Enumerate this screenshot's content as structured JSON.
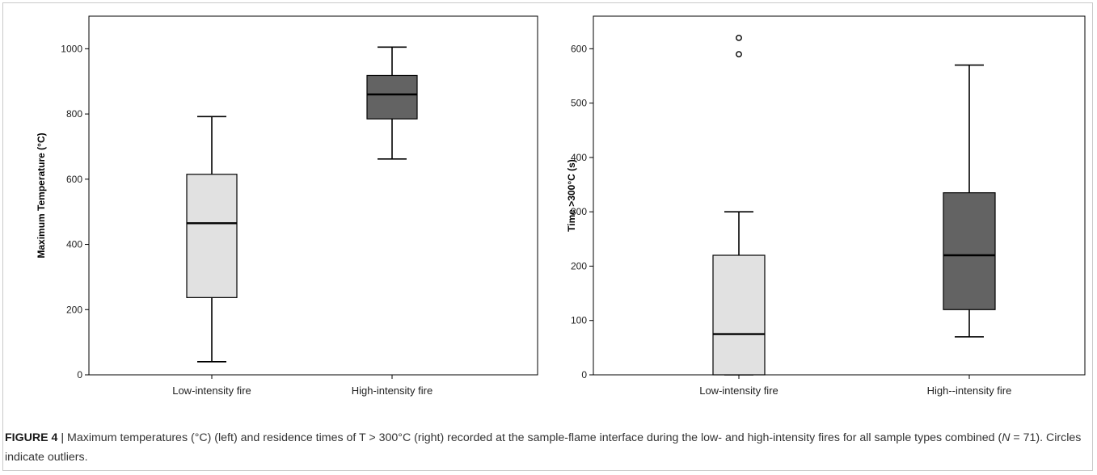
{
  "caption": {
    "label": "FIGURE 4",
    "separator": "|",
    "part1": "Maximum temperatures (°C) (left) and residence times of T > 300°C (right) recorded at the sample-flame interface during the low- and high-intensity fires for all sample types combined (",
    "n_symbol": "N",
    "part2": " = 71). Circles indicate outliers."
  },
  "colors": {
    "low_box": "#e1e1e1",
    "high_box": "#636363",
    "line": "#000000"
  },
  "chart_data": [
    {
      "type": "boxplot",
      "title": "",
      "xlabel": "",
      "ylabel": "Maximum Temperature (°C)",
      "ylim": [
        0,
        1100
      ],
      "yticks": [
        0,
        200,
        400,
        600,
        800,
        1000
      ],
      "grid": false,
      "categories": [
        "Low-intensity fire",
        "High-intensity fire"
      ],
      "boxes": [
        {
          "category": "Low-intensity fire",
          "min": 40,
          "q1": 237,
          "median": 465,
          "q3": 615,
          "max": 792,
          "outliers": []
        },
        {
          "category": "High-intensity fire",
          "min": 662,
          "q1": 785,
          "median": 860,
          "q3": 918,
          "max": 1005,
          "outliers": []
        }
      ]
    },
    {
      "type": "boxplot",
      "title": "",
      "xlabel": "",
      "ylabel": "Time >300°C (s)",
      "ylim": [
        0,
        660
      ],
      "yticks": [
        0,
        100,
        200,
        300,
        400,
        500,
        600
      ],
      "grid": false,
      "categories": [
        "Low-intensity fire",
        "High--intensity fire"
      ],
      "boxes": [
        {
          "category": "Low-intensity fire",
          "min": 0,
          "q1": 0,
          "median": 75,
          "q3": 220,
          "max": 300,
          "outliers": [
            590,
            620
          ]
        },
        {
          "category": "High--intensity fire",
          "min": 70,
          "q1": 120,
          "median": 220,
          "q3": 335,
          "max": 570,
          "outliers": []
        }
      ]
    }
  ]
}
